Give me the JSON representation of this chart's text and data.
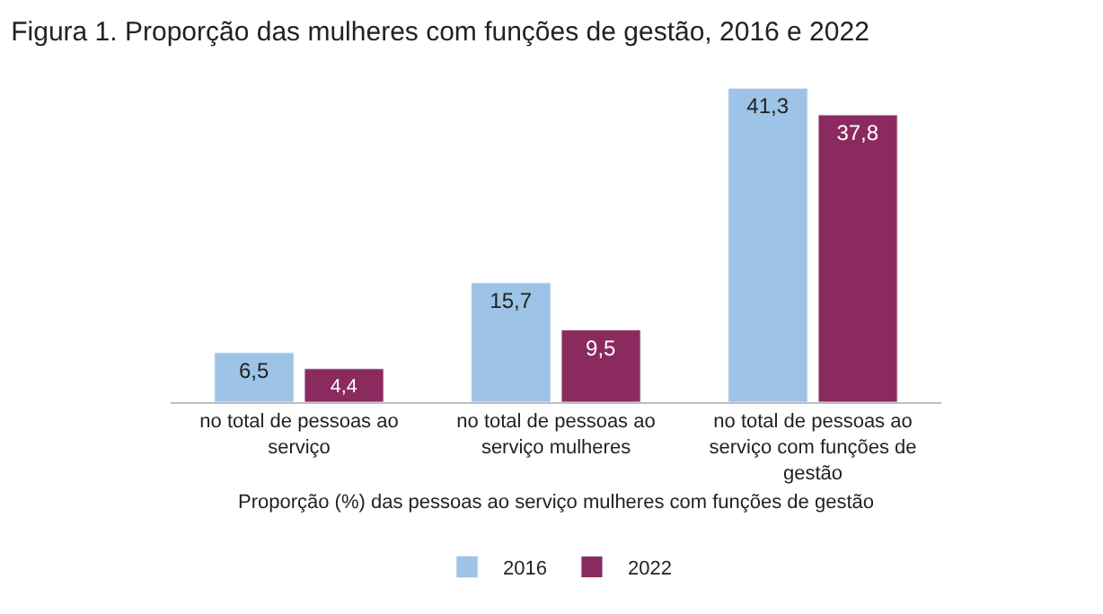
{
  "chart_data": {
    "type": "bar",
    "title": "Figura 1. Proporção das mulheres com funções de gestão, 2016 e 2022",
    "xlabel": "Proporção (%) das pessoas ao serviço mulheres com funções de gestão",
    "categories": [
      "no total de pessoas ao serviço",
      "no total de pessoas ao serviço mulheres",
      "no total de pessoas ao serviço com funções de gestão"
    ],
    "series": [
      {
        "name": "2016",
        "color": "#9dc3e6",
        "values": [
          6.5,
          15.7,
          41.3
        ],
        "value_labels": [
          "6,5",
          "15,7",
          "41,3"
        ]
      },
      {
        "name": "2022",
        "color": "#8b2a5e",
        "values": [
          4.4,
          9.5,
          37.8
        ],
        "value_labels": [
          "4,4",
          "9,5",
          "37,8"
        ]
      }
    ],
    "legend": "bottom"
  }
}
